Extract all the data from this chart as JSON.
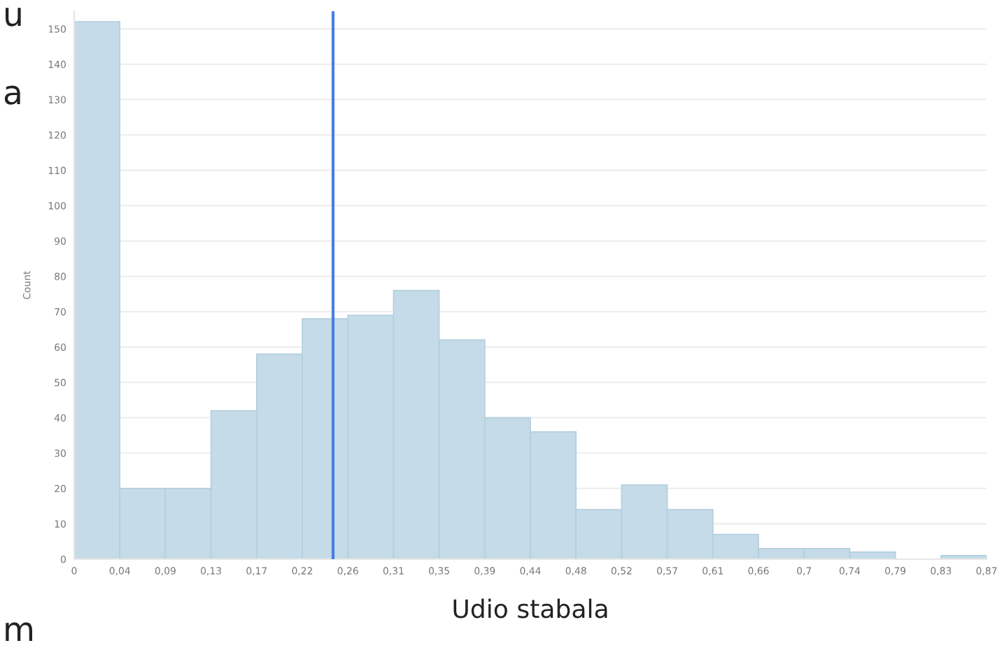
{
  "chart_data": {
    "type": "histogram",
    "xlabel": "Udio stabala",
    "ylabel": "Count",
    "bins": [
      0,
      0.0437,
      0.0874,
      0.1311,
      0.1748,
      0.2185,
      0.2622,
      0.3059,
      0.3496,
      0.3933,
      0.437,
      0.4807,
      0.5244,
      0.5681,
      0.6118,
      0.6555,
      0.6992,
      0.7429,
      0.7866,
      0.8303,
      0.874
    ],
    "values": [
      152,
      20,
      20,
      42,
      58,
      68,
      69,
      76,
      62,
      40,
      36,
      14,
      21,
      14,
      7,
      3,
      3,
      2,
      0,
      1
    ],
    "color": "#c5dbe8",
    "xlim": [
      0,
      0.874
    ],
    "xticks": [
      {
        "value": 0,
        "label": "0"
      },
      {
        "value": 0.0437,
        "label": "0,04"
      },
      {
        "value": 0.0874,
        "label": "0,09"
      },
      {
        "value": 0.1311,
        "label": "0,13"
      },
      {
        "value": 0.1748,
        "label": "0,17"
      },
      {
        "value": 0.2185,
        "label": "0,22"
      },
      {
        "value": 0.2622,
        "label": "0,26"
      },
      {
        "value": 0.3059,
        "label": "0,31"
      },
      {
        "value": 0.3496,
        "label": "0,35"
      },
      {
        "value": 0.3933,
        "label": "0,39"
      },
      {
        "value": 0.437,
        "label": "0,44"
      },
      {
        "value": 0.4807,
        "label": "0,48"
      },
      {
        "value": 0.5244,
        "label": "0,52"
      },
      {
        "value": 0.5681,
        "label": "0,57"
      },
      {
        "value": 0.6118,
        "label": "0,61"
      },
      {
        "value": 0.6555,
        "label": "0,66"
      },
      {
        "value": 0.6992,
        "label": "0,7"
      },
      {
        "value": 0.7429,
        "label": "0,74"
      },
      {
        "value": 0.7866,
        "label": "0,79"
      },
      {
        "value": 0.8303,
        "label": "0,83"
      },
      {
        "value": 0.874,
        "label": "0,87"
      }
    ],
    "ylim": [
      0,
      155
    ],
    "yticks": [
      0,
      10,
      20,
      30,
      40,
      50,
      60,
      70,
      80,
      90,
      100,
      110,
      120,
      130,
      140,
      150
    ],
    "grid": "y",
    "ref_lines": [
      {
        "axis": "x",
        "value": 0.248,
        "color": "#4a7fe0"
      }
    ],
    "annotations": [
      "u",
      "a",
      "m"
    ]
  }
}
